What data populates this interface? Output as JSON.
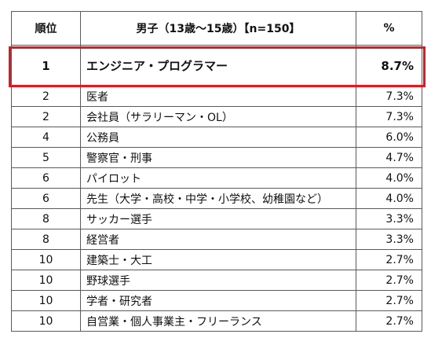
{
  "table": {
    "headers": {
      "rank": "順位",
      "job": "男子（13歳～15歳）【n=150】",
      "percent": "%"
    },
    "rows": [
      {
        "rank": "1",
        "job": "エンジニア・プログラマー",
        "percent": "8.7%"
      },
      {
        "rank": "2",
        "job": "医者",
        "percent": "7.3%"
      },
      {
        "rank": "2",
        "job": "会社員（サラリーマン・OL）",
        "percent": "7.3%"
      },
      {
        "rank": "4",
        "job": "公務員",
        "percent": "6.0%"
      },
      {
        "rank": "5",
        "job": "警察官・刑事",
        "percent": "4.7%"
      },
      {
        "rank": "6",
        "job": "パイロット",
        "percent": "4.0%"
      },
      {
        "rank": "6",
        "job": "先生（大学・高校・中学・小学校、幼稚園など）",
        "percent": "4.0%"
      },
      {
        "rank": "8",
        "job": "サッカー選手",
        "percent": "3.3%"
      },
      {
        "rank": "8",
        "job": "経営者",
        "percent": "3.3%"
      },
      {
        "rank": "10",
        "job": "建築士・大工",
        "percent": "2.7%"
      },
      {
        "rank": "10",
        "job": "野球選手",
        "percent": "2.7%"
      },
      {
        "rank": "10",
        "job": "学者・研究者",
        "percent": "2.7%"
      },
      {
        "rank": "10",
        "job": "自営業・個人事業主・フリーランス",
        "percent": "2.7%"
      }
    ]
  },
  "colors": {
    "highlight_border": "#e8141e",
    "grid_line": "#5a5a5a"
  }
}
